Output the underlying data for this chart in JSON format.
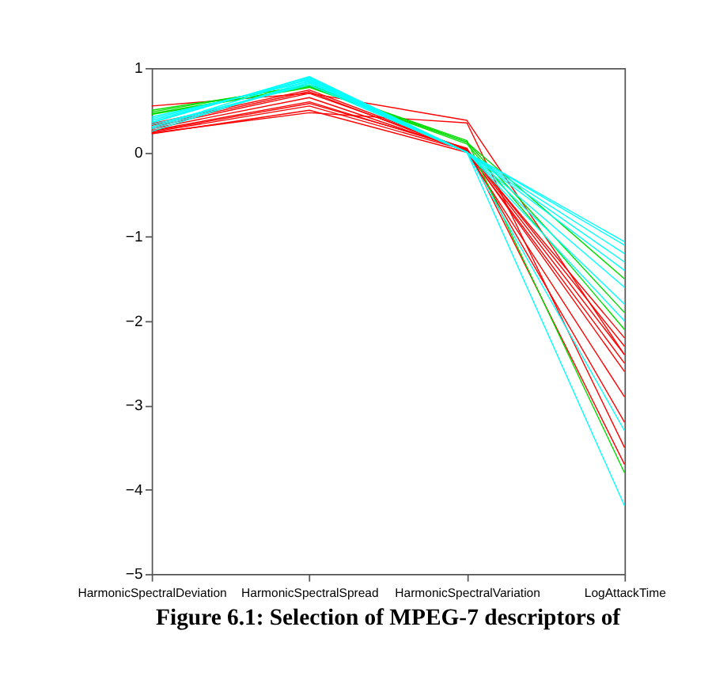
{
  "chart_data": {
    "type": "line",
    "categories": [
      "HarmonicSpectralDeviation",
      "HarmonicSpectralSpread",
      "HarmonicSpectralVariation",
      "LogAttackTime"
    ],
    "ylim": [
      -5,
      1
    ],
    "yticks": [
      -5,
      -4,
      -3,
      -2,
      -1,
      0,
      1
    ],
    "grid": false,
    "legend": false,
    "marker": "none",
    "line_style": "solid",
    "annotations": [
      "Figure 6.1: Selection of MPEG-7 descriptors of"
    ],
    "series": [
      {
        "color": "#ff0000",
        "values": [
          0.22,
          0.5,
          0.0,
          -2.9
        ]
      },
      {
        "color": "#ff0000",
        "values": [
          0.24,
          0.55,
          0.02,
          -2.6
        ]
      },
      {
        "color": "#ff0000",
        "values": [
          0.26,
          0.6,
          0.03,
          -2.4
        ]
      },
      {
        "color": "#ff0000",
        "values": [
          0.28,
          0.65,
          0.02,
          -2.2
        ]
      },
      {
        "color": "#ff0000",
        "values": [
          0.3,
          0.7,
          0.04,
          -2.3
        ]
      },
      {
        "color": "#ff0000",
        "values": [
          0.32,
          0.72,
          0.01,
          -2.5
        ]
      },
      {
        "color": "#ff0000",
        "values": [
          0.34,
          0.74,
          0.03,
          -3.2
        ]
      },
      {
        "color": "#ff0000",
        "values": [
          0.23,
          0.47,
          0.35,
          -3.5
        ]
      },
      {
        "color": "#ff0000",
        "values": [
          0.55,
          0.7,
          0.38,
          -2.4
        ]
      },
      {
        "color": "#ff0000",
        "values": [
          0.25,
          0.58,
          0.05,
          -3.7
        ]
      },
      {
        "color": "#00dd00",
        "values": [
          0.48,
          0.8,
          0.12,
          -1.5
        ]
      },
      {
        "color": "#00dd00",
        "values": [
          0.46,
          0.78,
          0.1,
          -2.1
        ]
      },
      {
        "color": "#00dd00",
        "values": [
          0.5,
          0.79,
          0.14,
          -3.8
        ]
      },
      {
        "color": "#00dd00",
        "values": [
          0.45,
          0.77,
          0.12,
          -1.9
        ]
      },
      {
        "color": "#00ffff",
        "values": [
          0.25,
          0.85,
          0.0,
          -1.06
        ]
      },
      {
        "color": "#00ffff",
        "values": [
          0.3,
          0.88,
          0.0,
          -1.2
        ]
      },
      {
        "color": "#00ffff",
        "values": [
          0.35,
          0.9,
          0.0,
          -1.4
        ]
      },
      {
        "color": "#00ffff",
        "values": [
          0.4,
          0.86,
          0.0,
          -1.6
        ]
      },
      {
        "color": "#00ffff",
        "values": [
          0.28,
          0.82,
          0.0,
          -1.8
        ]
      },
      {
        "color": "#00ffff",
        "values": [
          0.33,
          0.8,
          0.0,
          -2.0
        ]
      },
      {
        "color": "#00ffff",
        "values": [
          0.42,
          0.84,
          0.0,
          -1.3
        ]
      },
      {
        "color": "#00ffff",
        "values": [
          0.38,
          0.87,
          0.0,
          -3.3
        ]
      },
      {
        "color": "#00ffff",
        "values": [
          0.3,
          0.83,
          0.0,
          -4.19
        ]
      },
      {
        "color": "#00ffff",
        "values": [
          0.36,
          0.89,
          0.0,
          -1.1
        ]
      }
    ]
  }
}
